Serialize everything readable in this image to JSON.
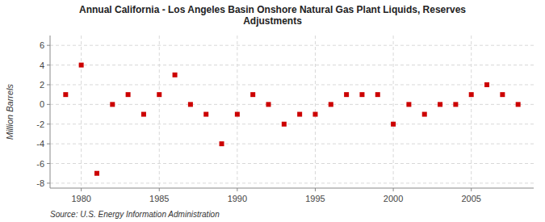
{
  "chart_data": {
    "type": "scatter",
    "title": "Annual California - Los Angeles Basin Onshore Natural Gas Plant Liquids, Reserves\nAdjustments",
    "ylabel": "Million Barrels",
    "source": "Source: U.S. Energy Information Administration",
    "x": [
      1979,
      1980,
      1981,
      1982,
      1983,
      1984,
      1985,
      1986,
      1987,
      1988,
      1989,
      1990,
      1991,
      1992,
      1993,
      1994,
      1995,
      1996,
      1997,
      1998,
      1999,
      2000,
      2001,
      2002,
      2003,
      2004,
      2005,
      2006,
      2007,
      2008
    ],
    "values": [
      1,
      4,
      -7,
      0,
      1,
      -1,
      1,
      3,
      0,
      -1,
      -4,
      -1,
      1,
      0,
      -2,
      -1,
      -1,
      0,
      1,
      1,
      1,
      -2,
      0,
      -1,
      0,
      0,
      1,
      2,
      1,
      0
    ],
    "color": "#cc0000",
    "marker": "square",
    "xlim": [
      1978,
      2009
    ],
    "ylim": [
      -8.5,
      7
    ],
    "xticks": [
      1980,
      1985,
      1990,
      1995,
      2000,
      2005
    ],
    "yticks": [
      -8,
      -6,
      -4,
      -2,
      0,
      2,
      4,
      6
    ],
    "grid": true
  }
}
